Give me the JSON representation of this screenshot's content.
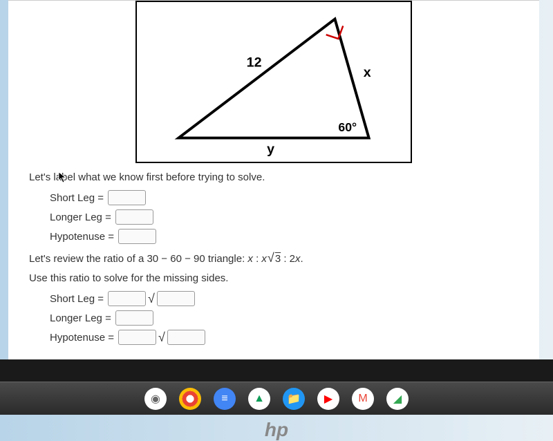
{
  "diagram": {
    "side_hypotenuse_label": "12",
    "side_right_label": "x",
    "side_bottom_label": "y",
    "angle_label": "60°",
    "border_color": "#000000",
    "line_width": 3,
    "right_angle_color": "#cc0000"
  },
  "instruction1": "Let's label what we know first before trying to solve.",
  "labels": {
    "short_leg": "Short Leg =",
    "longer_leg": "Longer Leg =",
    "hypotenuse": "Hypotenuse ="
  },
  "ratio_line_prefix": "Let's review the ratio of a ",
  "ratio_triangle": "30 − 60 − 90",
  "ratio_line_mid": " triangle: ",
  "ratio_expr_x1": "x",
  "ratio_expr_colon": " : ",
  "ratio_expr_x2": "x",
  "ratio_expr_sqrt": "√",
  "ratio_expr_3": "3",
  "ratio_expr_2x": "2x.",
  "instruction2": "Use this ratio to solve for the missing sides.",
  "taskbar": {
    "icons": [
      {
        "name": "launcher-icon",
        "bg": "#ffffff",
        "content": "◉",
        "color": "#666"
      },
      {
        "name": "chrome-icon",
        "bg": "radial-gradient(circle, #fff 25%, #ea4335 25% 50%, #fbbc05 50% 75%, #34a853 75%)",
        "content": "",
        "color": "#4285f4"
      },
      {
        "name": "docs-icon",
        "bg": "#4285f4",
        "content": "≡",
        "color": "#fff"
      },
      {
        "name": "drive-icon",
        "bg": "#ffffff",
        "content": "▲",
        "color": "#0f9d58"
      },
      {
        "name": "files-icon",
        "bg": "#2196f3",
        "content": "📁",
        "color": "#fff"
      },
      {
        "name": "youtube-icon",
        "bg": "#ffffff",
        "content": "▶",
        "color": "#ff0000"
      },
      {
        "name": "gmail-icon",
        "bg": "#ffffff",
        "content": "M",
        "color": "#ea4335"
      },
      {
        "name": "app-icon",
        "bg": "#ffffff",
        "content": "◢",
        "color": "#34a853"
      }
    ]
  },
  "hp_text": "hp"
}
